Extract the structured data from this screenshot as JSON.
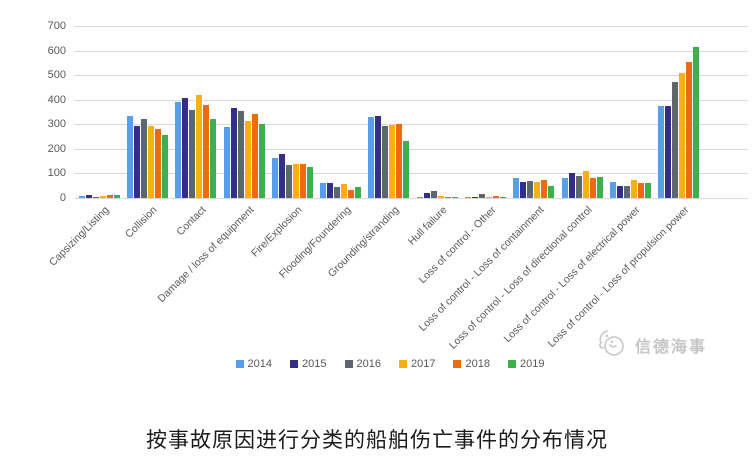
{
  "chart_data": {
    "type": "bar",
    "title": "",
    "xlabel": "",
    "ylabel": "",
    "ylim": [
      0,
      700
    ],
    "ytick_step": 100,
    "grid": true,
    "legend_position": "bottom",
    "categories": [
      "Capsizing/Listing",
      "Collision",
      "Contact",
      "Damage / loss of equipment",
      "Fire/Explosion",
      "Flooding/Foundering",
      "Grounding/stranding",
      "Hull failure",
      "Loss of control - Other",
      "Loss of control - Loss of containment",
      "Loss of control - Loss of directional control",
      "Loss of control - Loss of electrical power",
      "Loss of control - Loss of propulsion power"
    ],
    "series": [
      {
        "name": "2014",
        "color": "#55a0e6",
        "values": [
          10,
          335,
          390,
          290,
          163,
          62,
          330,
          5,
          3,
          80,
          83,
          66,
          375
        ]
      },
      {
        "name": "2015",
        "color": "#332e87",
        "values": [
          13,
          295,
          405,
          365,
          180,
          60,
          335,
          22,
          5,
          65,
          100,
          49,
          375
        ]
      },
      {
        "name": "2016",
        "color": "#5b6670",
        "values": [
          5,
          320,
          360,
          355,
          133,
          45,
          293,
          30,
          18,
          70,
          90,
          49,
          472
        ]
      },
      {
        "name": "2017",
        "color": "#f7b011",
        "values": [
          10,
          295,
          420,
          315,
          138,
          57,
          298,
          8,
          5,
          65,
          110,
          72,
          510
        ]
      },
      {
        "name": "2018",
        "color": "#e96d0d",
        "values": [
          14,
          280,
          380,
          340,
          138,
          32,
          303,
          6,
          8,
          73,
          80,
          60,
          554
        ]
      },
      {
        "name": "2019",
        "color": "#3faf4c",
        "values": [
          13,
          258,
          320,
          300,
          128,
          46,
          230,
          5,
          3,
          50,
          85,
          60,
          615
        ]
      }
    ]
  },
  "watermark": {
    "text": "信德海事"
  },
  "caption": {
    "text": "按事故原因进行分类的船舶伤亡事件的分布情况"
  }
}
